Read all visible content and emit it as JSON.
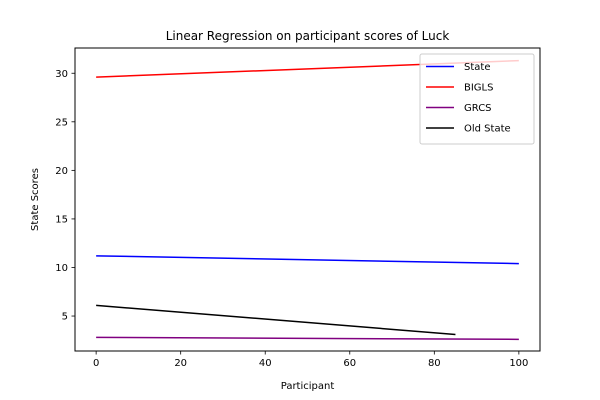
{
  "chart_data": {
    "type": "line",
    "title": "Linear Regression on participant scores of Luck",
    "xlabel": "Participant",
    "ylabel": "State Scores",
    "xlim": [
      -5,
      105
    ],
    "ylim": [
      1.4,
      32.6
    ],
    "xticks": [
      0,
      20,
      40,
      60,
      80,
      100
    ],
    "yticks": [
      5,
      10,
      15,
      20,
      25,
      30
    ],
    "grid": false,
    "legend_position": "top-right",
    "series": [
      {
        "name": "State",
        "color": "#0000ff",
        "x": [
          0,
          100
        ],
        "y": [
          11.2,
          10.4
        ]
      },
      {
        "name": "BIGLS",
        "color": "#ff0000",
        "x": [
          0,
          100
        ],
        "y": [
          29.6,
          31.3
        ]
      },
      {
        "name": "GRCS",
        "color": "#800080",
        "x": [
          0,
          100
        ],
        "y": [
          2.8,
          2.6
        ]
      },
      {
        "name": "Old State",
        "color": "#000000",
        "x": [
          0,
          85
        ],
        "y": [
          6.1,
          3.1
        ]
      }
    ]
  }
}
